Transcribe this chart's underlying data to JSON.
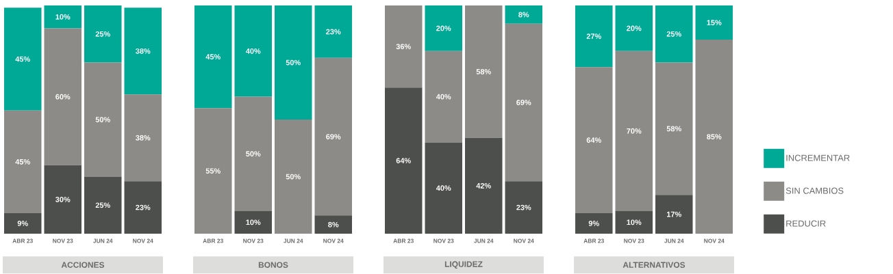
{
  "chart_data": [
    {
      "type": "bar",
      "stacked": true,
      "xlabel": "ACCIONES",
      "categories": [
        "ABR 23",
        "NOV 23",
        "JUN 24",
        "NOV 24"
      ],
      "ylim": [
        0,
        100
      ],
      "tick_labels": "x",
      "legend": "right",
      "series": [
        {
          "name": "REDUCIR",
          "color": "#4d4f4c",
          "values": [
            9,
            30,
            25,
            23
          ],
          "value_labels": [
            "9%",
            "30%",
            "25%",
            "23%"
          ]
        },
        {
          "name": "SIN CAMBIOS",
          "color": "#8c8b88",
          "values": [
            45,
            60,
            50,
            38
          ],
          "value_labels": [
            "45%",
            "60%",
            "50%",
            "38%"
          ]
        },
        {
          "name": "INCREMENTAR",
          "color": "#00a896",
          "values": [
            45,
            10,
            25,
            38
          ],
          "value_labels": [
            "45%",
            "10%",
            "25%",
            "38%"
          ]
        }
      ]
    },
    {
      "type": "bar",
      "stacked": true,
      "xlabel": "BONOS",
      "categories": [
        "ABR 23",
        "NOV 23",
        "JUN 24",
        "NOV 24"
      ],
      "ylim": [
        0,
        100
      ],
      "tick_labels": "x",
      "series": [
        {
          "color": "#4d4f4c",
          "values": [
            0,
            10,
            0,
            8
          ],
          "value_labels": [
            null,
            "10%",
            null,
            "8%"
          ]
        },
        {
          "color": "#8c8b88",
          "values": [
            55,
            50,
            50,
            69
          ],
          "value_labels": [
            "55%",
            "50%",
            "50%",
            "69%"
          ]
        },
        {
          "color": "#00a896",
          "values": [
            45,
            40,
            50,
            23
          ],
          "value_labels": [
            "45%",
            "40%",
            "50%",
            "23%"
          ]
        }
      ]
    },
    {
      "type": "bar",
      "stacked": true,
      "xlabel": "LIQUIDEZ",
      "categories": [
        "ABR 23",
        "NOV 23",
        "JUN 24",
        "NOV 24"
      ],
      "ylim": [
        0,
        100
      ],
      "tick_labels": "x",
      "series": [
        {
          "color": "#4d4f4c",
          "values": [
            64,
            40,
            42,
            23
          ],
          "value_labels": [
            "64%",
            "40%",
            "42%",
            "23%"
          ]
        },
        {
          "color": "#8c8b88",
          "values": [
            36,
            40,
            58,
            69
          ],
          "value_labels": [
            "36%",
            "40%",
            "58%",
            "69%"
          ]
        },
        {
          "color": "#00a896",
          "values": [
            0,
            20,
            0,
            8
          ],
          "value_labels": [
            null,
            "20%",
            null,
            "8%"
          ]
        }
      ]
    },
    {
      "type": "bar",
      "stacked": true,
      "xlabel": "ALTERNATIVOS",
      "categories": [
        "ABR 23",
        "NOV 23",
        "JUN 24",
        "NOV 24"
      ],
      "ylim": [
        0,
        100
      ],
      "tick_labels": "x",
      "series": [
        {
          "color": "#4d4f4c",
          "values": [
            9,
            10,
            17,
            0
          ],
          "value_labels": [
            "9%",
            "10%",
            "17%",
            null
          ]
        },
        {
          "color": "#8c8b88",
          "values": [
            64,
            70,
            58,
            85
          ],
          "value_labels": [
            "64%",
            "70%",
            "58%",
            "85%"
          ]
        },
        {
          "color": "#00a896",
          "values": [
            27,
            20,
            25,
            15
          ],
          "value_labels": [
            "27%",
            "20%",
            "25%",
            "15%"
          ]
        }
      ]
    }
  ]
}
